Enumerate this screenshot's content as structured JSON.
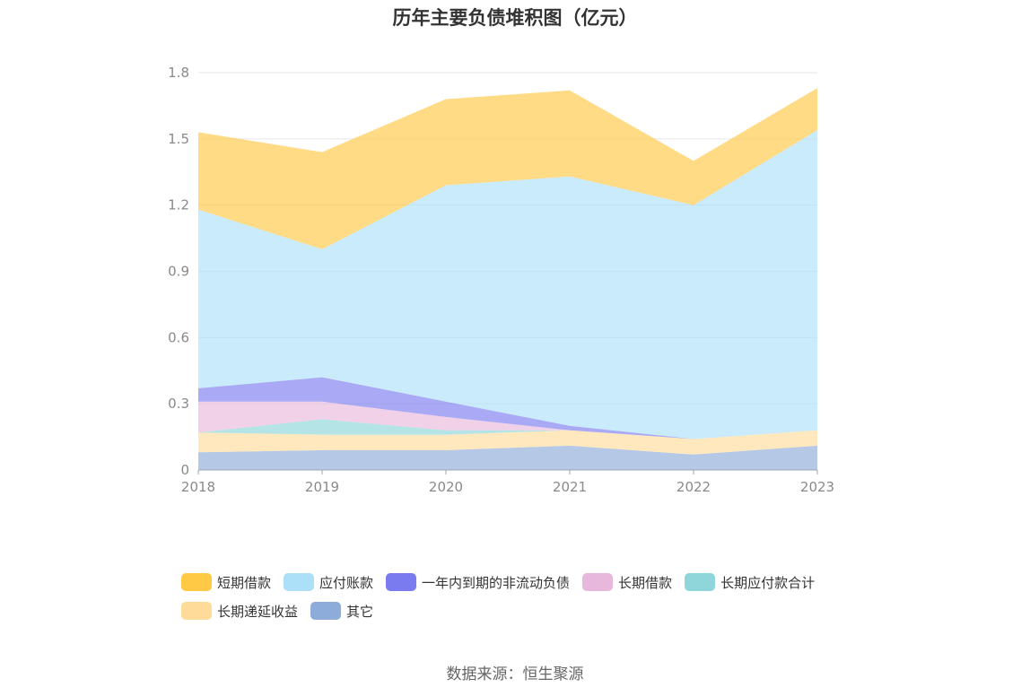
{
  "chart_data": {
    "type": "area",
    "stacked": true,
    "title": "历年主要负债堆积图（亿元）",
    "categories": [
      "2018",
      "2019",
      "2020",
      "2021",
      "2022",
      "2023"
    ],
    "ylim": [
      0,
      1.8
    ],
    "yticks": [
      "0",
      "0.3",
      "0.6",
      "0.9",
      "1.2",
      "1.5",
      "1.8"
    ],
    "grid": true,
    "legend_position": "bottom",
    "series": [
      {
        "name": "其它",
        "color": "#8eacda",
        "values": [
          0.08,
          0.09,
          0.09,
          0.11,
          0.07,
          0.11
        ]
      },
      {
        "name": "长期递延收益",
        "color": "#ffdb9a",
        "values": [
          0.09,
          0.07,
          0.07,
          0.07,
          0.07,
          0.07
        ]
      },
      {
        "name": "长期应付款合计",
        "color": "#8ed6da",
        "values": [
          0.0,
          0.07,
          0.02,
          0.0,
          0.0,
          0.0
        ]
      },
      {
        "name": "长期借款",
        "color": "#e8b8dc",
        "values": [
          0.14,
          0.08,
          0.06,
          0.0,
          0.0,
          0.0
        ]
      },
      {
        "name": "一年内到期的非流动负债",
        "color": "#7b7bf0",
        "values": [
          0.06,
          0.11,
          0.07,
          0.02,
          0.0,
          0.0
        ]
      },
      {
        "name": "应付账款",
        "color": "#ace0f9",
        "values": [
          0.81,
          0.58,
          0.98,
          1.13,
          1.06,
          1.36
        ]
      },
      {
        "name": "短期借款",
        "color": "#ffc845",
        "values": [
          0.35,
          0.44,
          0.39,
          0.39,
          0.2,
          0.19
        ]
      }
    ]
  },
  "legend_items": [
    {
      "label": "短期借款",
      "color": "#ffc845"
    },
    {
      "label": "应付账款",
      "color": "#ace0f9"
    },
    {
      "label": "一年内到期的非流动负债",
      "color": "#7b7bf0"
    },
    {
      "label": "长期借款",
      "color": "#e8b8dc"
    },
    {
      "label": "长期应付款合计",
      "color": "#8ed6da"
    },
    {
      "label": "长期递延收益",
      "color": "#ffdb9a"
    },
    {
      "label": "其它",
      "color": "#8eacda"
    }
  ],
  "source_text": "数据来源：恒生聚源"
}
